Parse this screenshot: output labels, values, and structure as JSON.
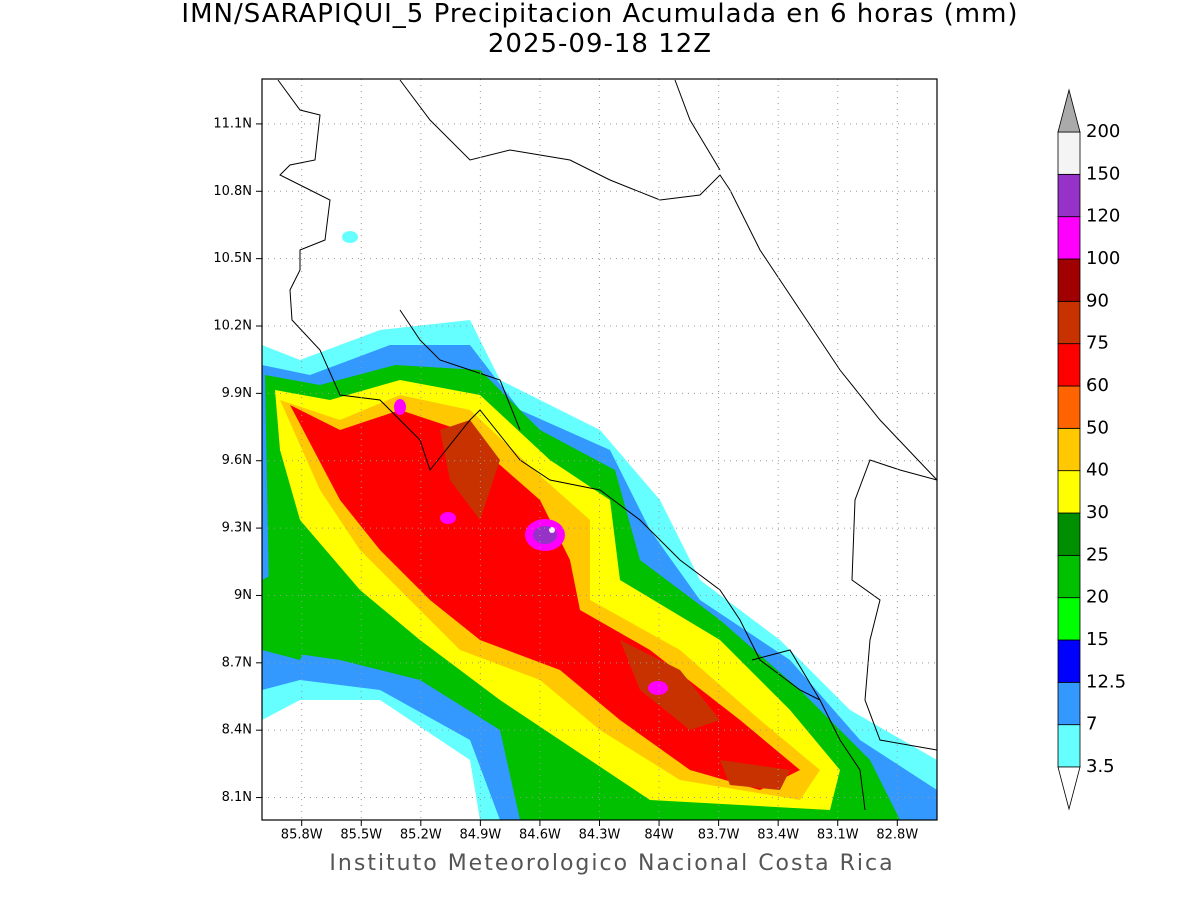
{
  "map": {
    "title": "IMN/SARAPIQUI_5 Precipitacion Acumulada en 6 horas (mm)",
    "subtitle": "2025-09-18 12Z",
    "footer": "Instituto Meteorologico Nacional Costa Rica",
    "xlim": [
      -86.0,
      -82.6
    ],
    "ylim": [
      8.0,
      11.3
    ],
    "xticks": [
      {
        "value": -85.8,
        "label": "85.8W"
      },
      {
        "value": -85.5,
        "label": "85.5W"
      },
      {
        "value": -85.2,
        "label": "85.2W"
      },
      {
        "value": -84.9,
        "label": "84.9W"
      },
      {
        "value": -84.6,
        "label": "84.6W"
      },
      {
        "value": -84.3,
        "label": "84.3W"
      },
      {
        "value": -84.0,
        "label": "84W"
      },
      {
        "value": -83.7,
        "label": "83.7W"
      },
      {
        "value": -83.4,
        "label": "83.4W"
      },
      {
        "value": -83.1,
        "label": "83.1W"
      },
      {
        "value": -82.8,
        "label": "82.8W"
      }
    ],
    "yticks": [
      {
        "value": 8.1,
        "label": "8.1N"
      },
      {
        "value": 8.4,
        "label": "8.4N"
      },
      {
        "value": 8.7,
        "label": "8.7N"
      },
      {
        "value": 9.0,
        "label": "9N"
      },
      {
        "value": 9.3,
        "label": "9.3N"
      },
      {
        "value": 9.6,
        "label": "9.6N"
      },
      {
        "value": 9.9,
        "label": "9.9N"
      },
      {
        "value": 10.2,
        "label": "10.2N"
      },
      {
        "value": 10.5,
        "label": "10.5N"
      },
      {
        "value": 10.8,
        "label": "10.8N"
      },
      {
        "value": 11.1,
        "label": "11.1N"
      }
    ],
    "grid": true,
    "colorbar": {
      "levels": [
        3.5,
        7,
        12.5,
        15,
        20,
        25,
        30,
        40,
        50,
        60,
        75,
        90,
        100,
        120,
        150,
        200
      ],
      "colors": [
        "#66ffff",
        "#3399ff",
        "#0000ff",
        "#00ff00",
        "#00c000",
        "#008f00",
        "#ffff00",
        "#ffc800",
        "#ff6400",
        "#ff0000",
        "#c83200",
        "#a00000",
        "#ff00ff",
        "#9632c8",
        "#f4f4f4"
      ],
      "under_color": "#ffffff",
      "over_color": "#aaaaaa"
    }
  }
}
